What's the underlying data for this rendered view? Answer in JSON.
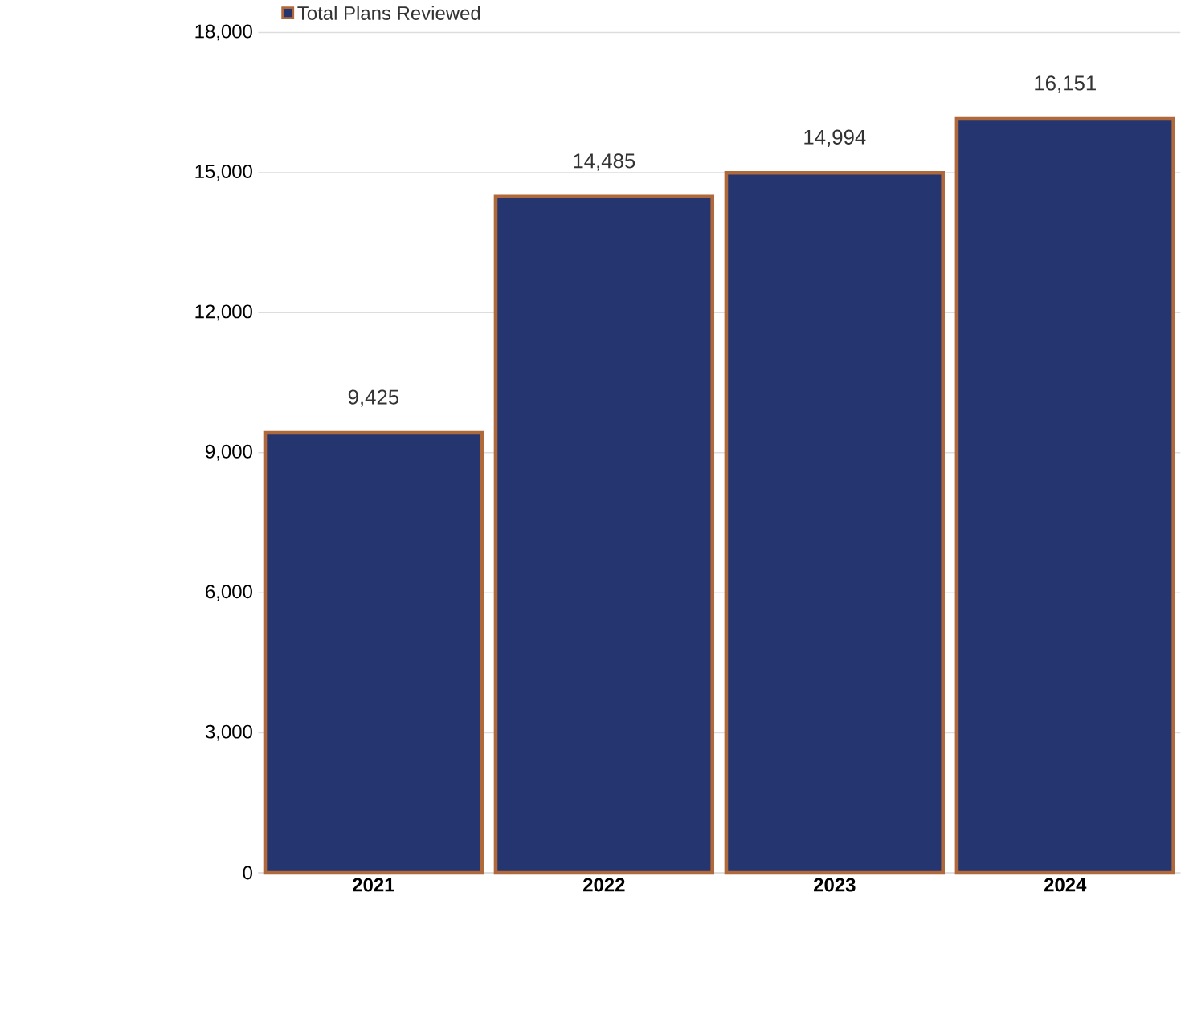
{
  "chart_data": {
    "type": "bar",
    "categories": [
      "2021",
      "2022",
      "2023",
      "2024"
    ],
    "series": [
      {
        "name": "Total Plans Reviewed",
        "color": "#253570",
        "values": [
          9425,
          14485,
          14994,
          16151
        ],
        "value_labels": [
          "9,425",
          "14,485",
          "14,994",
          "16,151"
        ]
      }
    ],
    "ylim": [
      0,
      18000
    ],
    "yticks": [
      0,
      {
        "value": 3000,
        "label": "3,000"
      },
      {
        "value": 6000,
        "label": "6,000"
      },
      {
        "value": 9000,
        "label": "9,000"
      },
      {
        "value": 12000,
        "label": "12,000"
      },
      {
        "value": 15000,
        "label": "15,000"
      },
      {
        "value": 18000,
        "label": "18,000"
      }
    ],
    "grid": "y",
    "legend": "top left"
  }
}
